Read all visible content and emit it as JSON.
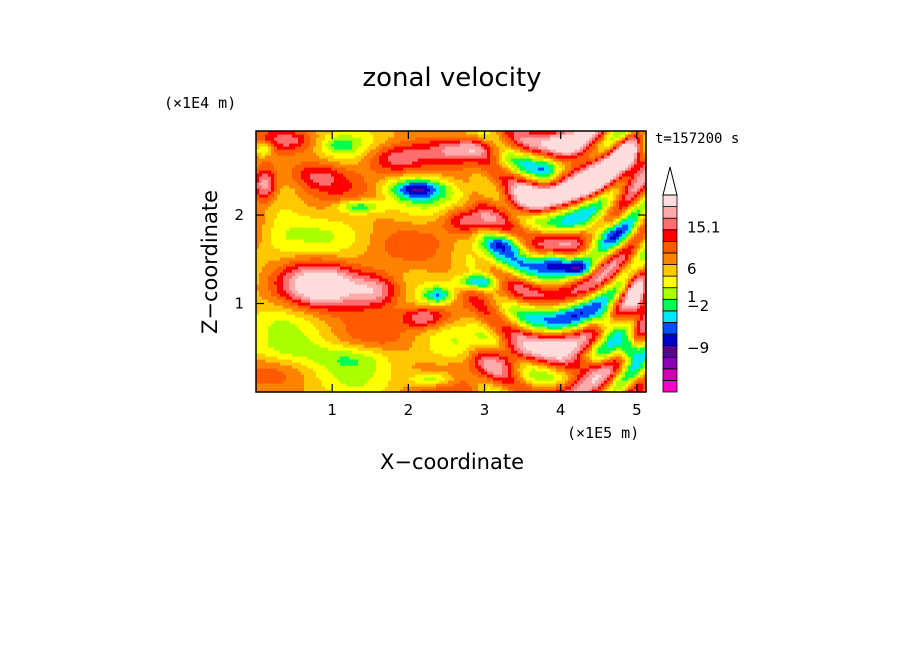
{
  "chart_data": {
    "type": "heatmap",
    "title": "zonal velocity",
    "xlabel": "X−coordinate",
    "ylabel": "Z−coordinate",
    "x_scale_label": "(×1E5 m)",
    "y_scale_label": "(×1E4 m)",
    "time_label": "t=157200 s",
    "xlim": [
      0,
      5.12
    ],
    "ylim": [
      0,
      2.95
    ],
    "x_ticks": [
      1,
      2,
      3,
      4,
      5
    ],
    "x_tick_labels": [
      "1",
      "2",
      "3",
      "4",
      "5"
    ],
    "y_ticks": [
      1,
      2
    ],
    "y_tick_labels": [
      "1",
      "2"
    ],
    "colorbar": {
      "colors": [
        "#ff00c8",
        "#d200b4",
        "#8c00b4",
        "#5a0096",
        "#0000c8",
        "#0050ff",
        "#00e6ff",
        "#00ff50",
        "#aaff00",
        "#ffff00",
        "#ffc800",
        "#ff8200",
        "#ff5a00",
        "#ff0000",
        "#ff6e6e",
        "#ffaaaa",
        "#ffdddd"
      ],
      "labels": [
        {
          "level": 3.8,
          "text": "−9"
        },
        {
          "level": 7.4,
          "text": "−2"
        },
        {
          "level": 8.2,
          "text": "1"
        },
        {
          "level": 10.6,
          "text": "6"
        },
        {
          "level": 14.2,
          "text": "15.1"
        }
      ],
      "extend": "max"
    },
    "features": [
      {
        "x": 0.1,
        "z": 2.75,
        "v": -5,
        "wx": 0.12,
        "wz": 0.08
      },
      {
        "x": 0.45,
        "z": 2.85,
        "v": 3,
        "wx": 0.3,
        "wz": 0.1
      },
      {
        "x": 1.1,
        "z": 2.8,
        "v": -3,
        "wx": 0.25,
        "wz": 0.1
      },
      {
        "x": 1.8,
        "z": 2.65,
        "v": 6,
        "wx": 0.4,
        "wz": 0.18
      },
      {
        "x": 2.8,
        "z": 2.75,
        "v": 5,
        "wx": 0.5,
        "wz": 0.12
      },
      {
        "x": 4.2,
        "z": 2.5,
        "v": 9,
        "wx": 0.6,
        "wz": 0.35
      },
      {
        "x": 4.9,
        "z": 2.7,
        "v": 7,
        "wx": 0.2,
        "wz": 0.2
      },
      {
        "x": 0.1,
        "z": 2.35,
        "v": 9,
        "wx": 0.18,
        "wz": 0.2
      },
      {
        "x": 2.1,
        "z": 2.3,
        "v": -8,
        "wx": 0.35,
        "wz": 0.12
      },
      {
        "x": 1.35,
        "z": 2.1,
        "v": -6,
        "wx": 0.3,
        "wz": 0.08
      },
      {
        "x": 0.8,
        "z": 2.45,
        "v": 4,
        "wx": 0.4,
        "wz": 0.15
      },
      {
        "x": 3.8,
        "z": 2.45,
        "v": -4,
        "wx": 0.2,
        "wz": 0.25
      },
      {
        "x": 4.5,
        "z": 1.8,
        "v": -5,
        "wx": 0.35,
        "wz": 0.15
      },
      {
        "x": 0.9,
        "z": 1.2,
        "v": 9,
        "wx": 0.5,
        "wz": 0.25
      },
      {
        "x": 1.6,
        "z": 1.15,
        "v": 8,
        "wx": 0.35,
        "wz": 0.2
      },
      {
        "x": 0.3,
        "z": 1.8,
        "v": -2,
        "wx": 0.3,
        "wz": 0.3
      },
      {
        "x": 2.4,
        "z": 1.1,
        "v": -7,
        "wx": 0.2,
        "wz": 0.1
      },
      {
        "x": 2.9,
        "z": 1.25,
        "v": -7,
        "wx": 0.3,
        "wz": 0.08
      },
      {
        "x": 3.3,
        "z": 1.7,
        "v": -5,
        "wx": 0.3,
        "wz": 0.12
      },
      {
        "x": 3.9,
        "z": 1.5,
        "v": -6,
        "wx": 0.2,
        "wz": 0.12
      },
      {
        "x": 4.25,
        "z": 1.4,
        "v": -7,
        "wx": 0.2,
        "wz": 0.1
      },
      {
        "x": 4.6,
        "z": 0.8,
        "v": -6,
        "wx": 0.15,
        "wz": 0.15
      },
      {
        "x": 4.9,
        "z": 0.5,
        "v": -7,
        "wx": 0.12,
        "wz": 0.12
      },
      {
        "x": 0.35,
        "z": 0.45,
        "v": -3,
        "wx": 0.6,
        "wz": 0.18
      },
      {
        "x": 1.3,
        "z": 0.4,
        "v": -3,
        "wx": 0.5,
        "wz": 0.15
      },
      {
        "x": 2.3,
        "z": 0.15,
        "v": -5,
        "wx": 0.3,
        "wz": 0.08
      },
      {
        "x": 3.2,
        "z": 0.35,
        "v": 7,
        "wx": 0.4,
        "wz": 0.18
      },
      {
        "x": 4.2,
        "z": 0.3,
        "v": 8,
        "wx": 0.4,
        "wz": 0.15
      },
      {
        "x": 5.0,
        "z": 1.1,
        "v": 7,
        "wx": 0.15,
        "wz": 0.3
      },
      {
        "x": 2.2,
        "z": 0.85,
        "v": 6,
        "wx": 0.3,
        "wz": 0.12
      },
      {
        "x": 2.8,
        "z": 1.95,
        "v": 6,
        "wx": 0.35,
        "wz": 0.15
      },
      {
        "x": 3.6,
        "z": 2.15,
        "v": 6,
        "wx": 0.3,
        "wz": 0.15
      }
    ]
  }
}
